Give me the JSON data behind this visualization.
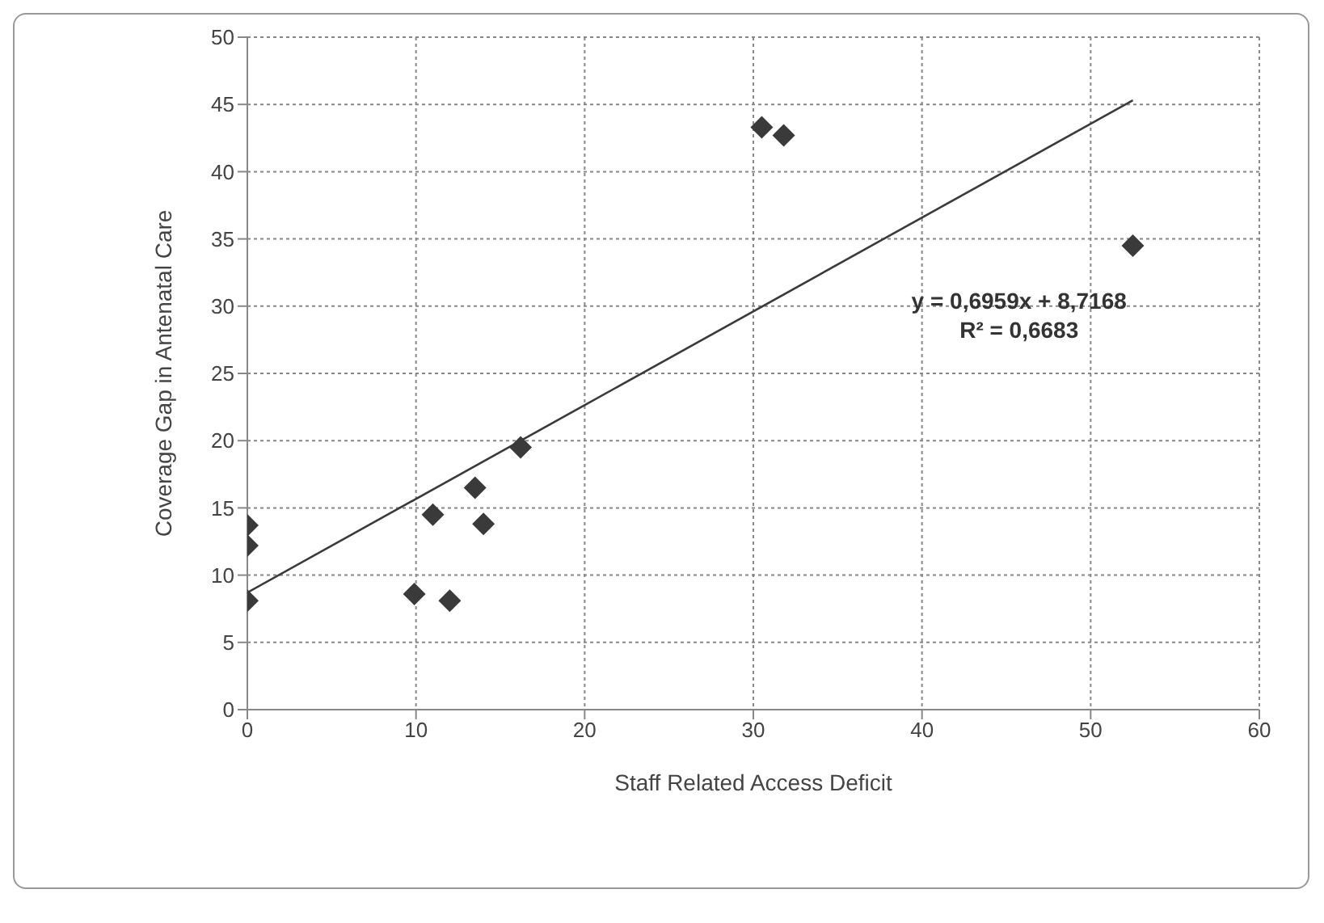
{
  "chart_data": {
    "type": "scatter",
    "xlabel": "Staff Related Access Deficit",
    "ylabel": "Coverage Gap in Antenatal Care",
    "annotations": [
      "y = 0,6959x + 8,7168",
      "R² = 0,6683"
    ],
    "xlim": [
      0,
      60
    ],
    "xticks": [
      0,
      10,
      20,
      30,
      40,
      50,
      60
    ],
    "ylim": [
      0,
      50
    ],
    "yticks": [
      0,
      5,
      10,
      15,
      20,
      25,
      30,
      35,
      40,
      45,
      50
    ],
    "grid": true,
    "marker": "diamond",
    "series": [
      {
        "color": "#3a3a3a",
        "x": [
          0,
          0,
          0,
          9.9,
          12,
          11,
          13.5,
          14,
          16.2,
          30.5,
          31.8,
          52.5
        ],
        "values": [
          13.7,
          12.2,
          8.1,
          8.6,
          8.1,
          14.5,
          16.5,
          13.8,
          19.5,
          43.3,
          42.7,
          34.5
        ]
      },
      {
        "type": "line",
        "color": "#3a3a3a",
        "marker": "none",
        "x": [
          0,
          52.5
        ],
        "values": [
          8.7,
          45.3
        ]
      }
    ]
  }
}
